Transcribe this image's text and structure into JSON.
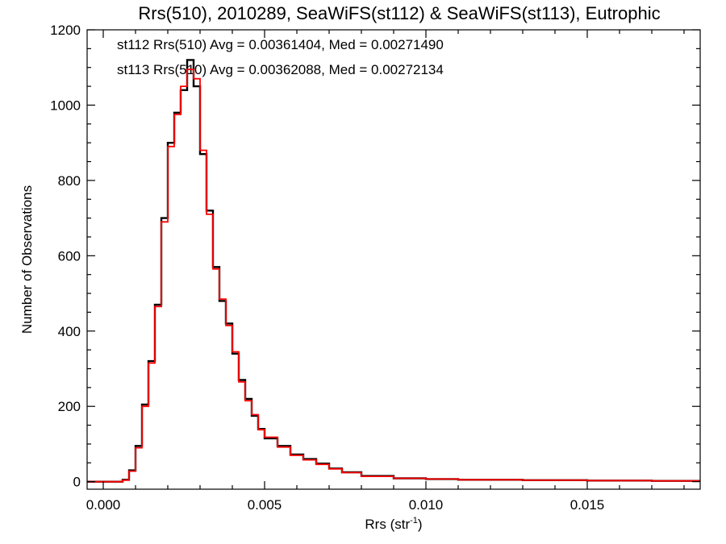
{
  "chart_data": {
    "type": "line",
    "title": "Rrs(510), 2010289, SeaWiFS(st112) & SeaWiFS(st113), Eutrophic",
    "xlabel_main": "Rrs (str",
    "xlabel_sup": "-1",
    "xlabel_close": ")",
    "ylabel": "Number of Observations",
    "xlim": [
      -0.0005,
      0.0185
    ],
    "ylim": [
      -20,
      1200
    ],
    "x_ticks": [
      0.0,
      0.005,
      0.01,
      0.015
    ],
    "x_tick_labels": [
      "0.000",
      "0.005",
      "0.010",
      "0.015"
    ],
    "y_ticks": [
      0,
      200,
      400,
      600,
      800,
      1000,
      1200
    ],
    "y_tick_labels": [
      "0",
      "200",
      "400",
      "600",
      "800",
      "1000",
      "1200"
    ],
    "step": "histogram",
    "grid": false,
    "annotations": [
      {
        "text": "st112 Rrs(510) Avg = 0.00361404, Med = 0.00271490",
        "color": "#000000"
      },
      {
        "text": "st113 Rrs(510) Avg = 0.00362088, Med = 0.00272134",
        "color": "#ff0000"
      }
    ],
    "series": [
      {
        "color": "#000000",
        "points": [
          [
            -0.0005,
            0
          ],
          [
            0.0004,
            0
          ],
          [
            0.0006,
            5
          ],
          [
            0.0008,
            30
          ],
          [
            0.001,
            95
          ],
          [
            0.0012,
            205
          ],
          [
            0.0014,
            320
          ],
          [
            0.0016,
            470
          ],
          [
            0.0018,
            700
          ],
          [
            0.002,
            900
          ],
          [
            0.0022,
            980
          ],
          [
            0.0024,
            1040
          ],
          [
            0.0026,
            1120
          ],
          [
            0.0028,
            1050
          ],
          [
            0.003,
            870
          ],
          [
            0.0032,
            720
          ],
          [
            0.0034,
            570
          ],
          [
            0.0036,
            480
          ],
          [
            0.0038,
            420
          ],
          [
            0.004,
            340
          ],
          [
            0.0042,
            270
          ],
          [
            0.0044,
            220
          ],
          [
            0.0046,
            175
          ],
          [
            0.0048,
            140
          ],
          [
            0.005,
            115
          ],
          [
            0.0054,
            95
          ],
          [
            0.0058,
            72
          ],
          [
            0.0062,
            60
          ],
          [
            0.0066,
            48
          ],
          [
            0.007,
            35
          ],
          [
            0.0074,
            25
          ],
          [
            0.008,
            15
          ],
          [
            0.009,
            9
          ],
          [
            0.01,
            7
          ],
          [
            0.011,
            5
          ],
          [
            0.013,
            4
          ],
          [
            0.015,
            3
          ],
          [
            0.017,
            2
          ],
          [
            0.0185,
            2
          ]
        ]
      },
      {
        "color": "#ff0000",
        "points": [
          [
            -0.0005,
            0
          ],
          [
            0.0004,
            0
          ],
          [
            0.0006,
            4
          ],
          [
            0.0008,
            28
          ],
          [
            0.001,
            90
          ],
          [
            0.0012,
            200
          ],
          [
            0.0014,
            315
          ],
          [
            0.0016,
            465
          ],
          [
            0.0018,
            690
          ],
          [
            0.002,
            890
          ],
          [
            0.0022,
            975
          ],
          [
            0.0024,
            1050
          ],
          [
            0.0026,
            1095
          ],
          [
            0.0028,
            1070
          ],
          [
            0.003,
            880
          ],
          [
            0.0032,
            710
          ],
          [
            0.0034,
            565
          ],
          [
            0.0036,
            485
          ],
          [
            0.0038,
            415
          ],
          [
            0.004,
            345
          ],
          [
            0.0042,
            265
          ],
          [
            0.0044,
            215
          ],
          [
            0.0046,
            178
          ],
          [
            0.0048,
            138
          ],
          [
            0.005,
            118
          ],
          [
            0.0054,
            92
          ],
          [
            0.0058,
            70
          ],
          [
            0.0062,
            58
          ],
          [
            0.0066,
            46
          ],
          [
            0.007,
            34
          ],
          [
            0.0074,
            24
          ],
          [
            0.008,
            14
          ],
          [
            0.009,
            9
          ],
          [
            0.01,
            7
          ],
          [
            0.011,
            5
          ],
          [
            0.013,
            4
          ],
          [
            0.015,
            3
          ],
          [
            0.017,
            2
          ],
          [
            0.0185,
            2
          ]
        ]
      }
    ]
  }
}
